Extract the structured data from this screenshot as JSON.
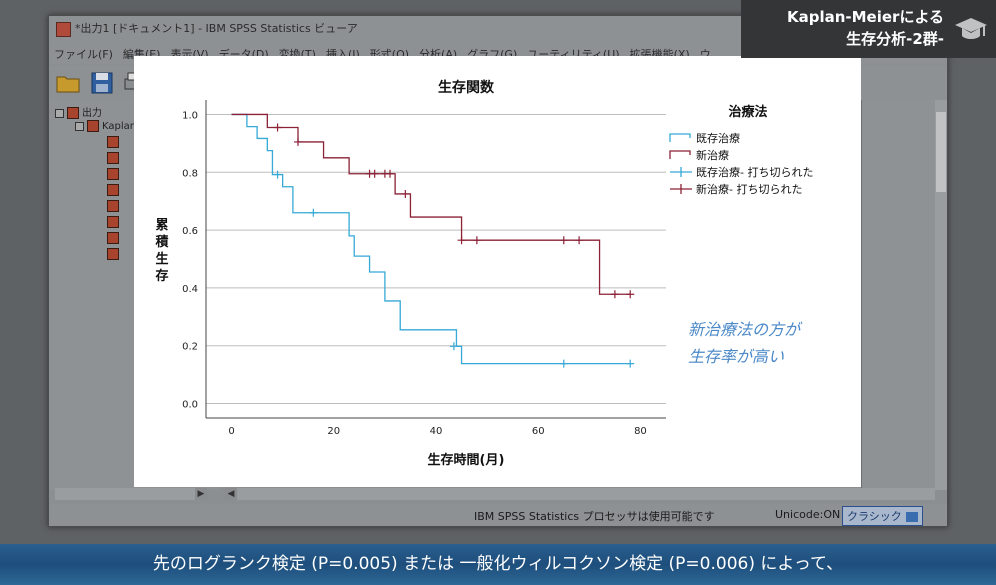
{
  "window": {
    "title": "*出力1 [ドキュメント1] - IBM SPSS Statistics ビューア",
    "menus": [
      "ファイル(F)",
      "編集(E)",
      "表示(V)",
      "データ(D)",
      "変換(T)",
      "挿入(I)",
      "形式(O)",
      "分析(A)",
      "グラフ(G)",
      "ユーティリティ(U)",
      "拡張機能(X)",
      "ウ"
    ]
  },
  "tree": {
    "root_label": "出力",
    "child_label": "Kaplan"
  },
  "status": {
    "processor": "IBM SPSS Statistics プロセッサは使用可能です",
    "unicode": "Unicode:ON",
    "mode": "クラシック"
  },
  "badge": {
    "line1": "Kaplan-Meierによる",
    "line2": "生存分析-2群-",
    "icon": "graduation-cap-icon"
  },
  "annotation": {
    "line1": "新治療法の方が",
    "line2": "生存率が高い"
  },
  "subtitle": "先のログランク検定 (P=0.005) または 一般化ウィルコクソン検定 (P=0.006) によって、",
  "chart_data": {
    "type": "line",
    "step": true,
    "title": "生存関数",
    "xlabel": "生存時間(月)",
    "ylabel": "累積生存",
    "xlim": [
      -5,
      85
    ],
    "ylim": [
      -0.05,
      1.05
    ],
    "xticks": [
      0,
      20,
      40,
      60,
      80
    ],
    "yticks": [
      0.0,
      0.2,
      0.4,
      0.6,
      0.8,
      1.0
    ],
    "ytick_labels": [
      "0.0",
      "0.2",
      "0.4",
      "0.6",
      "0.8",
      "1.0"
    ],
    "grid": "horizontal",
    "legend_title": "治療法",
    "legend_position": "right",
    "legend": [
      "既存治療",
      "新治療",
      "既存治療- 打ち切られた",
      "新治療- 打ち切られた"
    ],
    "series": [
      {
        "name": "既存治療",
        "color": "#36a9d8",
        "steps": [
          [
            0,
            1.0
          ],
          [
            3,
            0.958
          ],
          [
            5,
            0.917
          ],
          [
            7,
            0.875
          ],
          [
            8,
            0.792
          ],
          [
            10,
            0.75
          ],
          [
            12,
            0.66
          ],
          [
            23,
            0.58
          ],
          [
            24,
            0.51
          ],
          [
            27,
            0.455
          ],
          [
            30,
            0.355
          ],
          [
            33,
            0.255
          ],
          [
            44,
            0.198
          ],
          [
            45,
            0.138
          ],
          [
            78,
            0.138
          ]
        ],
        "censored": [
          [
            9,
            0.792
          ],
          [
            16,
            0.66
          ],
          [
            43.5,
            0.198
          ],
          [
            65,
            0.138
          ],
          [
            78,
            0.138
          ]
        ]
      },
      {
        "name": "新治療",
        "color": "#8b2236",
        "steps": [
          [
            0,
            1.0
          ],
          [
            7,
            0.955
          ],
          [
            13,
            0.905
          ],
          [
            18,
            0.85
          ],
          [
            23,
            0.795
          ],
          [
            32,
            0.725
          ],
          [
            35,
            0.645
          ],
          [
            45,
            0.565
          ],
          [
            72,
            0.378
          ],
          [
            78,
            0.378
          ]
        ],
        "censored": [
          [
            9,
            0.955
          ],
          [
            13,
            0.905
          ],
          [
            27,
            0.795
          ],
          [
            28,
            0.795
          ],
          [
            30,
            0.795
          ],
          [
            31,
            0.795
          ],
          [
            34,
            0.725
          ],
          [
            45,
            0.565
          ],
          [
            48,
            0.565
          ],
          [
            65,
            0.565
          ],
          [
            68,
            0.565
          ],
          [
            75,
            0.378
          ],
          [
            78,
            0.378
          ]
        ]
      }
    ]
  }
}
